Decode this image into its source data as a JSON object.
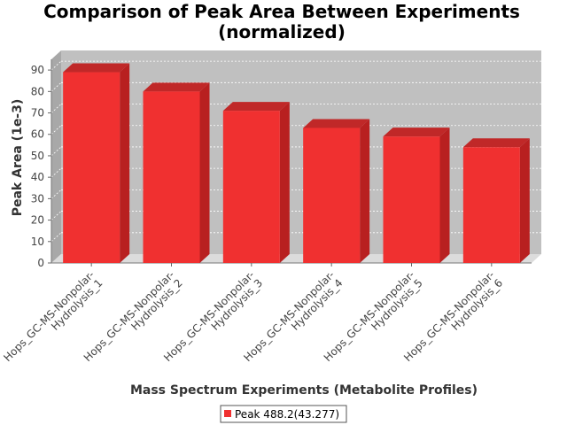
{
  "chart_data": {
    "type": "bar",
    "title": "Comparison of Peak Area Between Experiments\n(normalized)",
    "title_lines": [
      "Comparison of Peak Area Between Experiments",
      "(normalized)"
    ],
    "xlabel": "Mass Spectrum Experiments (Metabolite Profiles)",
    "ylabel": "Peak Area (1e-3)",
    "categories": [
      "Hops_GC-MS-Nonpolar-\nHydrolysis_1",
      "Hops_GC-MS-Nonpolar-\nHydrolysis_2",
      "Hops_GC-MS-Nonpolar-\nHydrolysis_3",
      "Hops_GC-MS-Nonpolar-\nHydrolysis_4",
      "Hops_GC-MS-Nonpolar-\nHydrolysis_5",
      "Hops_GC-MS-Nonpolar-\nHydrolysis_6"
    ],
    "series": [
      {
        "name": "Peak 488.2(43.277)",
        "values": [
          89,
          80,
          71,
          63,
          59,
          54
        ],
        "color": "#f03030"
      }
    ],
    "ylim": [
      0,
      95
    ],
    "yticks": [
      0,
      10,
      20,
      30,
      40,
      50,
      60,
      70,
      80,
      90
    ],
    "grid": true,
    "legend_position": "bottom-center",
    "style": "3d-bar",
    "plot_background": "#c0c0c0"
  }
}
